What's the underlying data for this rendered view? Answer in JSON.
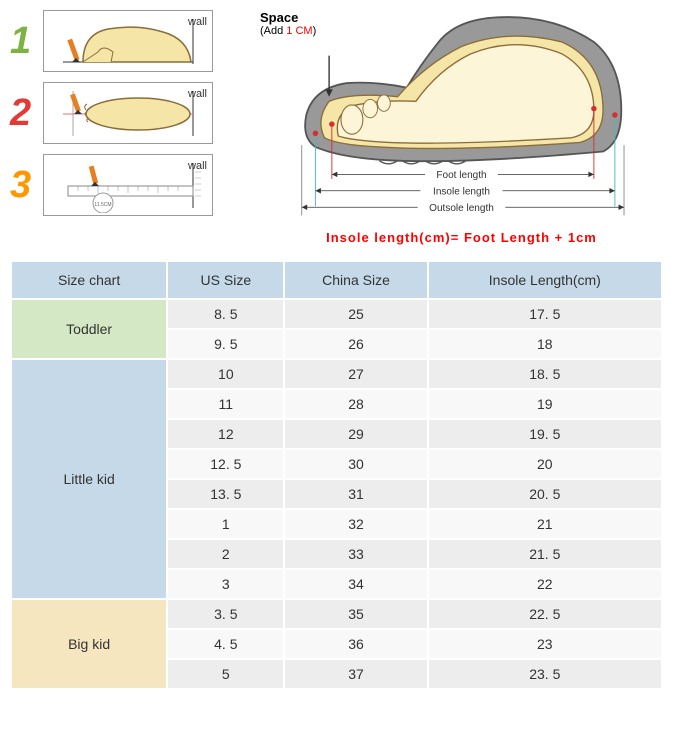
{
  "steps": {
    "numbers": [
      "1",
      "2",
      "3"
    ],
    "colors": [
      "#7cb342",
      "#e53935",
      "#ff9800"
    ],
    "wall_label": "wall",
    "ruler_value": "11.5CM"
  },
  "shoe": {
    "space_title": "Space",
    "space_sub_prefix": "(Add ",
    "space_sub_value": "1 CM",
    "space_sub_suffix": ")",
    "foot_length": "Foot length",
    "insole_length": "Insole length",
    "outsole_length": "Outsole length",
    "formula": "Insole length(cm)= Foot Length + 1cm"
  },
  "table": {
    "headers": [
      "Size chart",
      "US Size",
      "China Size",
      "Insole Length(cm)"
    ],
    "categories": [
      {
        "name": "Toddler",
        "class": "cat-toddler",
        "rowspan": 2
      },
      {
        "name": "Little kid",
        "class": "cat-little",
        "rowspan": 8
      },
      {
        "name": "Big kid",
        "class": "cat-big",
        "rowspan": 3
      }
    ],
    "rows": [
      {
        "cat": 0,
        "us": "8. 5",
        "cn": "25",
        "in": "17. 5"
      },
      {
        "us": "9. 5",
        "cn": "26",
        "in": "18"
      },
      {
        "cat": 1,
        "us": "10",
        "cn": "27",
        "in": "18. 5"
      },
      {
        "us": "11",
        "cn": "28",
        "in": "19"
      },
      {
        "us": "12",
        "cn": "29",
        "in": "19. 5"
      },
      {
        "us": "12. 5",
        "cn": "30",
        "in": "20"
      },
      {
        "us": "13. 5",
        "cn": "31",
        "in": "20. 5"
      },
      {
        "us": "1",
        "cn": "32",
        "in": "21"
      },
      {
        "us": "2",
        "cn": "33",
        "in": "21. 5"
      },
      {
        "us": "3",
        "cn": "34",
        "in": "22"
      },
      {
        "cat": 2,
        "us": "3. 5",
        "cn": "35",
        "in": "22. 5"
      },
      {
        "us": "4. 5",
        "cn": "36",
        "in": "23"
      },
      {
        "us": "5",
        "cn": "37",
        "in": "23. 5"
      }
    ]
  },
  "col_widths": [
    "24%",
    "18%",
    "22%",
    "36%"
  ]
}
